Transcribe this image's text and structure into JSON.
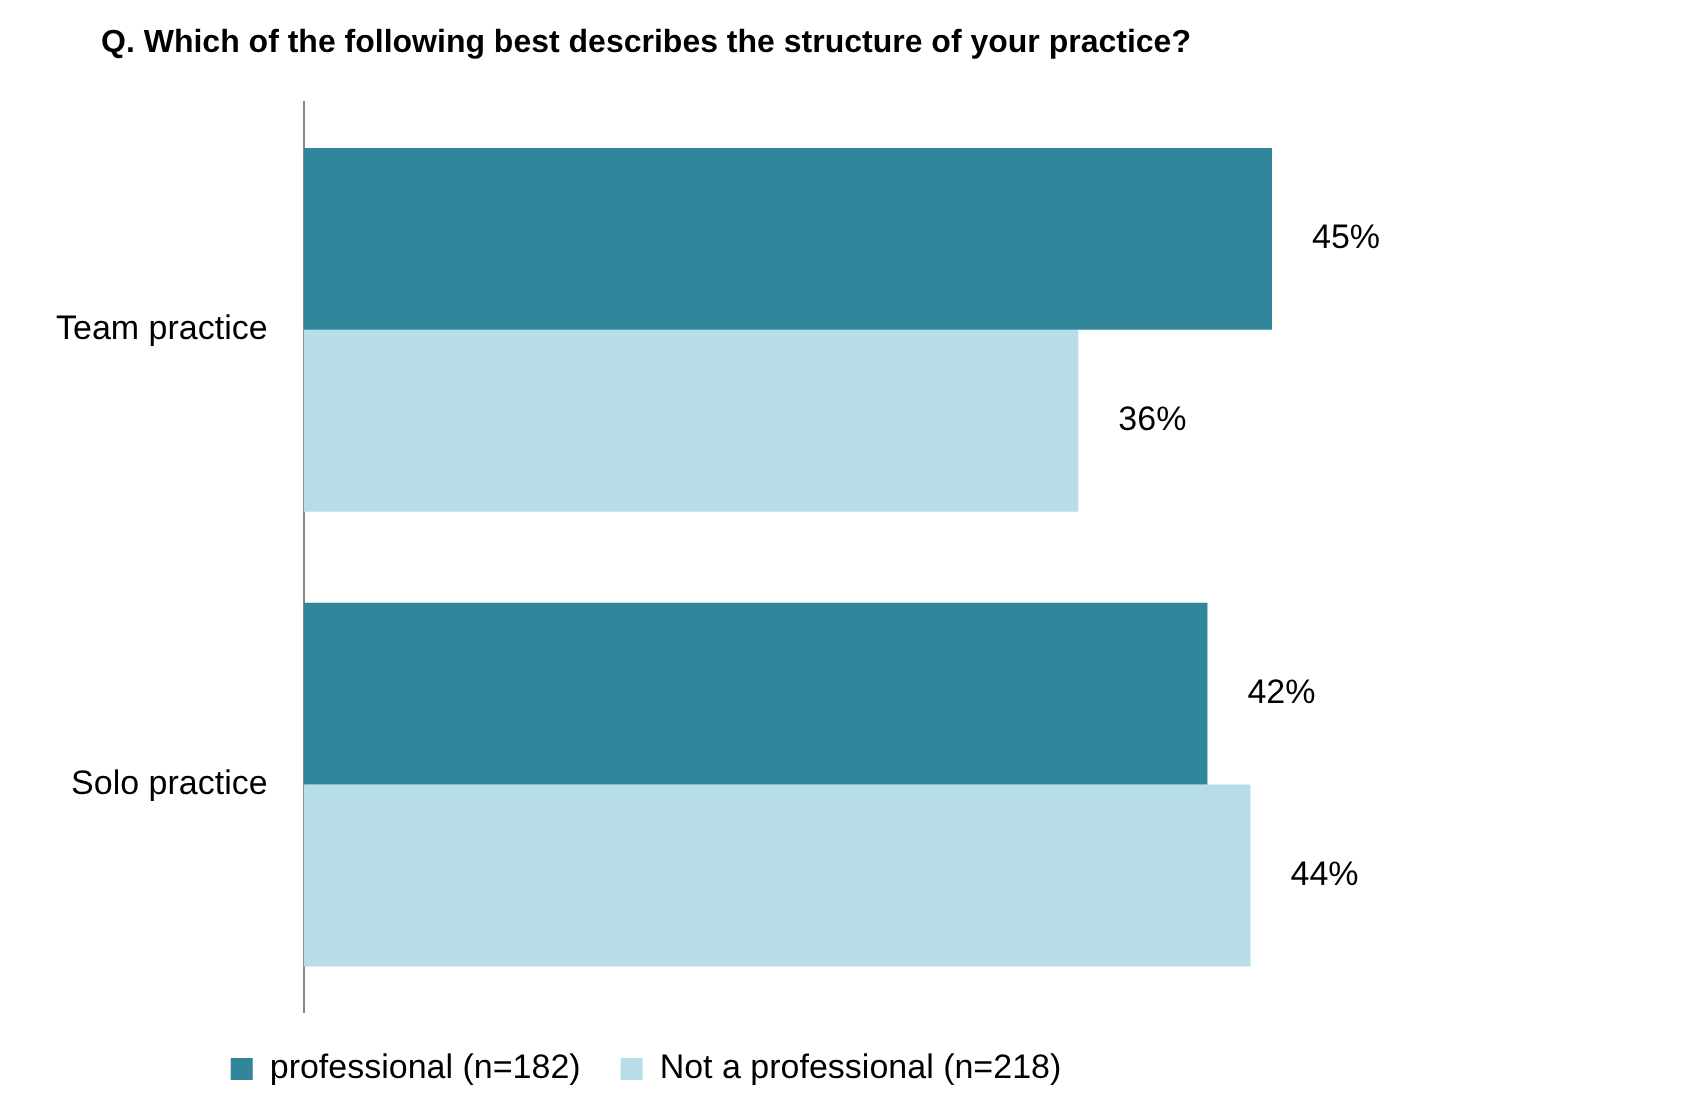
{
  "chart_data": {
    "type": "bar",
    "orientation": "horizontal",
    "title": "Q. Which of the following best describes the structure of your practice?",
    "categories": [
      "Team practice",
      "Solo practice"
    ],
    "series": [
      {
        "name": "professional (n=182)",
        "color": "#31869b",
        "values": [
          45,
          42
        ],
        "value_labels": [
          "45%",
          "42%"
        ]
      },
      {
        "name": "Not a professional (n=218)",
        "color": "#b7dee8",
        "values": [
          36,
          44
        ],
        "value_labels": [
          "36%",
          "44%"
        ]
      }
    ],
    "grid": false,
    "legend": "bottom",
    "tick_labels": "y"
  }
}
